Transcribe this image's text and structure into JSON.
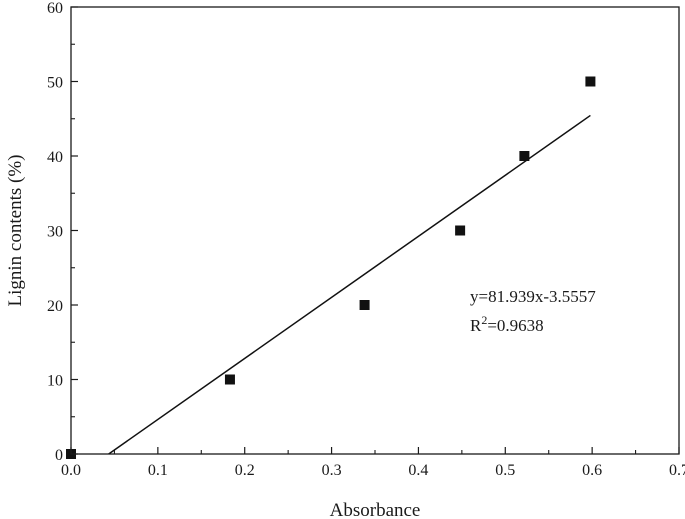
{
  "chart_data": {
    "type": "scatter",
    "title": "",
    "xlabel": "Absorbance",
    "ylabel": "Lignin contents (%)",
    "xlim": [
      0.0,
      0.7
    ],
    "ylim": [
      0,
      60
    ],
    "x_ticks": [
      "0.0",
      "0.1",
      "0.2",
      "0.3",
      "0.4",
      "0.5",
      "0.6",
      "0.7"
    ],
    "y_ticks": [
      "0",
      "10",
      "20",
      "30",
      "40",
      "50",
      "60"
    ],
    "grid": false,
    "legend": "none",
    "series": [
      {
        "points": [
          {
            "x": 0.0,
            "y": 0
          },
          {
            "x": 0.183,
            "y": 10
          },
          {
            "x": 0.338,
            "y": 20
          },
          {
            "x": 0.448,
            "y": 30
          },
          {
            "x": 0.522,
            "y": 40
          },
          {
            "x": 0.598,
            "y": 50
          }
        ],
        "marker": "square",
        "color": "#111111"
      }
    ],
    "fit_line": {
      "slope": 81.939,
      "intercept": -3.5557,
      "x_range": [
        0.0434,
        0.598
      ],
      "color": "#111111"
    },
    "annotations": {
      "equation": "y=81.939x-3.5557",
      "r2_prefix": "R",
      "r2_sup": "2",
      "r2_value": "=0.9638"
    }
  }
}
